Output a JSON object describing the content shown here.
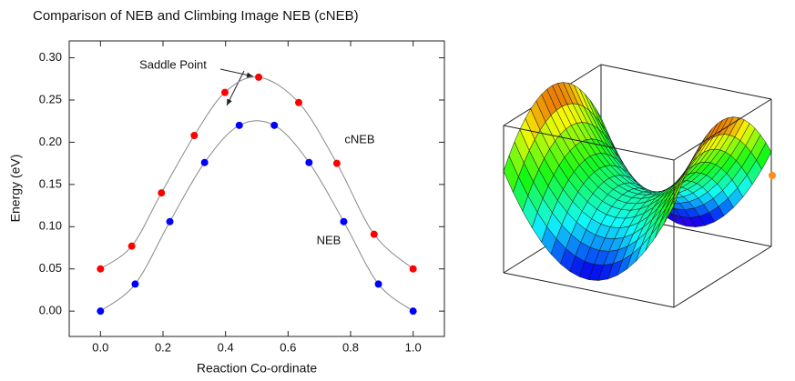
{
  "chart_data": {
    "type": "line",
    "title": "Comparison of NEB and Climbing Image NEB (cNEB)",
    "x_label": "Reaction Co-ordinate",
    "y_label": "Energy  (eV)",
    "xlim": [
      -0.1,
      1.1
    ],
    "xticks": [
      {
        "value": 0,
        "label": "0.0"
      },
      0.2,
      0.4,
      0.6,
      0.8,
      {
        "value": 1,
        "label": "1.0"
      }
    ],
    "ylim": [
      -0.03,
      0.32
    ],
    "yticks": [
      {
        "value": 0,
        "label": "0.00"
      },
      0.05,
      {
        "value": 0.1,
        "label": "0.10"
      },
      0.15,
      {
        "value": 0.2,
        "label": "0.20"
      },
      0.25,
      {
        "value": 0.3,
        "label": "0.30"
      }
    ],
    "line_color": "#888888",
    "series": [
      {
        "name": "cNEB",
        "color": "#ff0000",
        "x": [
          0,
          0.1,
          0.195,
          0.3,
          0.398,
          0.506,
          0.634,
          0.756,
          0.875,
          1.0
        ],
        "values": [
          0.05,
          0.077,
          0.14,
          0.208,
          0.259,
          0.277,
          0.247,
          0.175,
          0.091,
          0.05
        ]
      },
      {
        "name": "NEB",
        "color": "#0000ff",
        "x": [
          0,
          0.111,
          0.222,
          0.333,
          0.444,
          0.556,
          0.667,
          0.778,
          0.889,
          1.0
        ],
        "values": [
          0,
          0.032,
          0.106,
          0.176,
          0.22,
          0.22,
          0.176,
          0.106,
          0.032,
          0
        ]
      }
    ],
    "annotations": [
      {
        "text": "Saddle Point"
      }
    ]
  }
}
